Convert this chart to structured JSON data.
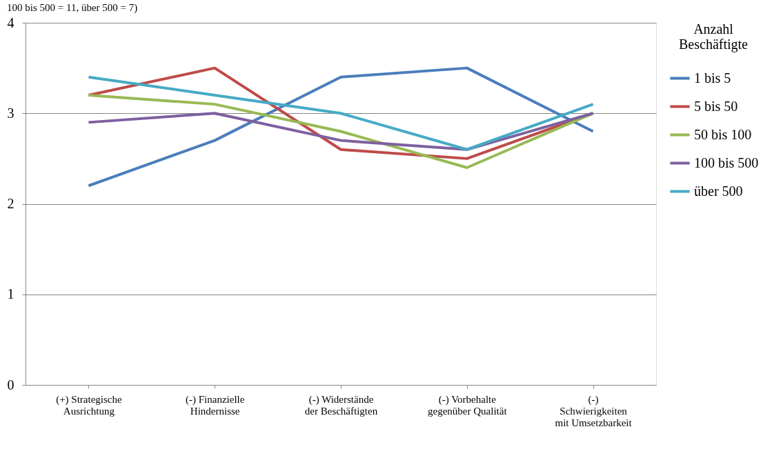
{
  "chart_data": {
    "type": "line",
    "annotations": [
      "100 bis 500 = 11, über 500 = 7)"
    ],
    "categories": [
      "(+) Strategische\nAusrichtung",
      "(-) Finanzielle\nHindernisse",
      "(-) Widerstände\nder Beschäftigten",
      "(-) Vorbehalte\ngegenüber Qualität",
      "(-)\nSchwierigkeiten\nmit Umsetzbarkeit"
    ],
    "series": [
      {
        "name": "1 bis 5",
        "color": "#4a7ebb",
        "values": [
          2.2,
          2.7,
          3.4,
          3.5,
          2.8
        ]
      },
      {
        "name": "5 bis 50",
        "color": "#be4b48",
        "values": [
          3.2,
          3.5,
          2.6,
          2.5,
          3.0
        ]
      },
      {
        "name": "50 bis 100",
        "color": "#98b954",
        "values": [
          3.2,
          3.1,
          2.8,
          2.4,
          3.0
        ]
      },
      {
        "name": "100 bis 500",
        "color": "#7d60a0",
        "values": [
          2.9,
          3.0,
          2.7,
          2.6,
          3.0
        ]
      },
      {
        "name": "über 500",
        "color": "#46aac5",
        "values": [
          3.4,
          3.2,
          3.0,
          2.6,
          3.1
        ]
      }
    ],
    "legend_title": "Anzahl Beschäftigte",
    "ylim": [
      0,
      4
    ],
    "yticks": [
      0,
      1,
      2,
      3,
      4
    ],
    "grid": "y",
    "legend": "right",
    "marker": "none",
    "line_style": "solid"
  }
}
